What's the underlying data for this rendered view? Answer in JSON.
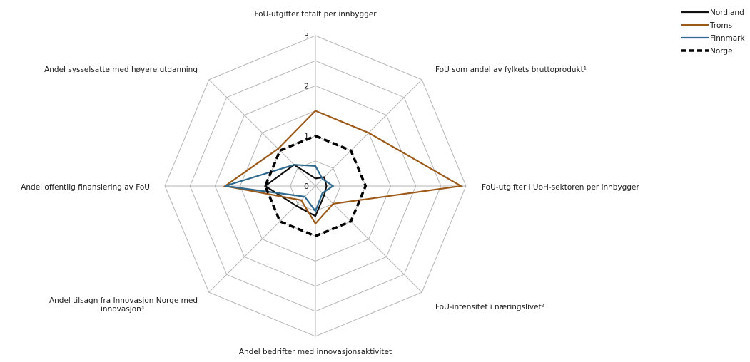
{
  "chart_data": {
    "type": "radar",
    "axes": [
      "FoU-utgifter totalt per innbygger",
      "FoU som andel av fylkets bruttoprodukt¹",
      "FoU-utgifter i UoH-sektoren per innbygger",
      "FoU-intensitet i næringslivet²",
      "Andel bedrifter med innovasjonsaktivitet",
      "Andel tilsagn fra Innovasjon Norge med innovasjon³",
      "Andel offentlig finansiering av FoU",
      "Andel sysselsatte med høyere utdanning"
    ],
    "rlim": [
      0,
      3
    ],
    "ticks": [
      "0",
      "1",
      "2",
      "3"
    ],
    "grid_levels": 6,
    "grid": true,
    "legend_position": "top-right",
    "series": [
      {
        "name": "Nordland",
        "color": "#111111",
        "dash": "solid",
        "values": [
          0.15,
          0.25,
          0.22,
          0.25,
          0.6,
          0.55,
          1.0,
          0.6
        ]
      },
      {
        "name": "Troms",
        "color": "#9c5a1a",
        "dash": "solid",
        "values": [
          1.5,
          1.5,
          2.9,
          0.5,
          0.75,
          0.4,
          1.8,
          1.05
        ]
      },
      {
        "name": "Finnmark",
        "color": "#2f6a8e",
        "dash": "solid",
        "values": [
          0.4,
          0.2,
          0.35,
          0.2,
          0.5,
          0.3,
          1.8,
          0.6
        ]
      },
      {
        "name": "Norge",
        "color": "#000000",
        "dash": "dashed",
        "values": [
          1.0,
          1.0,
          1.0,
          1.0,
          1.0,
          1.0,
          1.0,
          1.0
        ]
      }
    ]
  }
}
